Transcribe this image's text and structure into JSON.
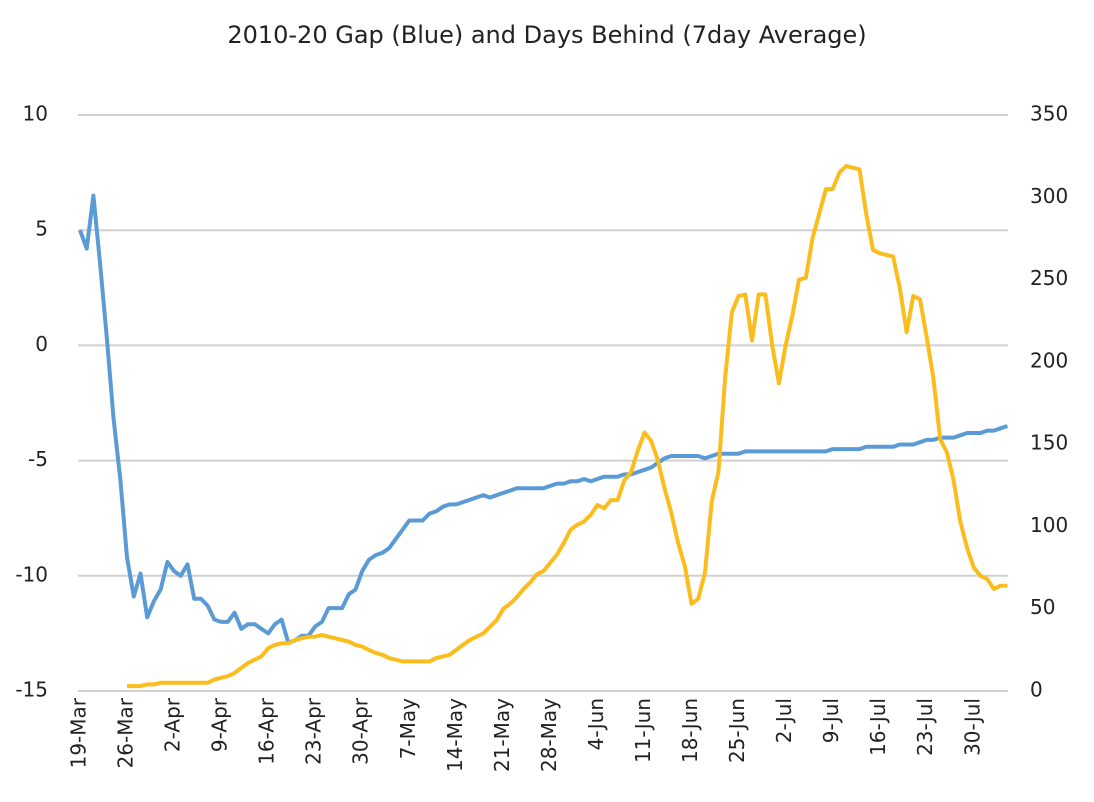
{
  "chart_data": {
    "type": "line",
    "title": "2010-20 Gap (Blue) and Days Behind (7day Average)",
    "categories": [
      "19-Mar",
      null,
      null,
      null,
      null,
      null,
      null,
      "26-Mar",
      null,
      null,
      null,
      null,
      null,
      null,
      "2-Apr",
      null,
      null,
      null,
      null,
      null,
      null,
      "9-Apr",
      null,
      null,
      null,
      null,
      null,
      null,
      "16-Apr",
      null,
      null,
      null,
      null,
      null,
      null,
      "23-Apr",
      null,
      null,
      null,
      null,
      null,
      null,
      "30-Apr",
      null,
      null,
      null,
      null,
      null,
      null,
      "7-May",
      null,
      null,
      null,
      null,
      null,
      null,
      "14-May",
      null,
      null,
      null,
      null,
      null,
      null,
      "21-May",
      null,
      null,
      null,
      null,
      null,
      null,
      "28-May",
      null,
      null,
      null,
      null,
      null,
      null,
      "4-Jun",
      null,
      null,
      null,
      null,
      null,
      null,
      "11-Jun",
      null,
      null,
      null,
      null,
      null,
      null,
      "18-Jun",
      null,
      null,
      null,
      null,
      null,
      null,
      "25-Jun",
      null,
      null,
      null,
      null,
      null,
      null,
      "2-Jul",
      null,
      null,
      null,
      null,
      null,
      null,
      "9-Jul",
      null,
      null,
      null,
      null,
      null,
      null,
      "16-Jul",
      null,
      null,
      null,
      null,
      null,
      null,
      "23-Jul",
      null,
      null,
      null,
      null,
      null,
      null,
      "30-Jul",
      null,
      null,
      null,
      null,
      null
    ],
    "series": [
      {
        "color": "#5b9bd5",
        "values": [
          5.0,
          4.2,
          6.5,
          3.5,
          0.3,
          -3.2,
          -5.8,
          -9.2,
          -10.9,
          -9.9,
          -11.8,
          -11.1,
          -10.6,
          -9.4,
          -9.8,
          -10.0,
          -9.5,
          -11.0,
          -11.0,
          -11.3,
          -11.9,
          -12.0,
          -12.0,
          -11.6,
          -12.3,
          -12.1,
          -12.1,
          -12.3,
          -12.5,
          -12.1,
          -11.9,
          -12.9,
          -12.8,
          -12.6,
          -12.6,
          -12.2,
          -12.0,
          -11.4,
          -11.4,
          -11.4,
          -10.8,
          -10.6,
          -9.8,
          -9.3,
          -9.1,
          -9.0,
          -8.8,
          -8.4,
          -8.0,
          -7.6,
          -7.6,
          -7.6,
          -7.3,
          -7.2,
          -7.0,
          -6.9,
          -6.9,
          -6.8,
          -6.7,
          -6.6,
          -6.5,
          -6.6,
          -6.5,
          -6.4,
          -6.3,
          -6.2,
          -6.2,
          -6.2,
          -6.2,
          -6.2,
          -6.1,
          -6.0,
          -6.0,
          -5.9,
          -5.9,
          -5.8,
          -5.9,
          -5.8,
          -5.7,
          -5.7,
          -5.7,
          -5.6,
          -5.6,
          -5.5,
          -5.4,
          -5.3,
          -5.1,
          -4.9,
          -4.8,
          -4.8,
          -4.8,
          -4.8,
          -4.8,
          -4.9,
          -4.8,
          -4.7,
          -4.7,
          -4.7,
          -4.7,
          -4.6,
          -4.6,
          -4.6,
          -4.6,
          -4.6,
          -4.6,
          -4.6,
          -4.6,
          -4.6,
          -4.6,
          -4.6,
          -4.6,
          -4.6,
          -4.5,
          -4.5,
          -4.5,
          -4.5,
          -4.5,
          -4.4,
          -4.4,
          -4.4,
          -4.4,
          -4.4,
          -4.3,
          -4.3,
          -4.3,
          -4.2,
          -4.1,
          -4.1,
          -4.0,
          -4.0,
          -4.0,
          -3.9,
          -3.8,
          -3.8,
          -3.8,
          -3.7,
          -3.7,
          -3.6,
          -3.5
        ]
      },
      {
        "color": "#fbbd1d",
        "axis": "y2",
        "values": [
          null,
          null,
          null,
          null,
          null,
          null,
          null,
          3,
          3,
          3,
          4,
          4,
          5,
          5,
          5,
          5,
          5,
          5,
          5,
          5,
          7,
          8,
          9,
          11,
          14,
          17,
          19,
          21,
          26,
          28,
          29,
          29,
          31,
          32,
          33,
          33,
          34,
          33,
          32,
          31,
          30,
          28,
          27,
          25,
          23,
          22,
          20,
          19,
          18,
          18,
          18,
          18,
          18,
          20,
          21,
          22,
          25,
          28,
          31,
          33,
          35,
          39,
          43,
          50,
          53,
          57,
          62,
          66,
          71,
          73,
          78,
          83,
          90,
          98,
          101,
          103,
          107,
          113,
          111,
          116,
          116,
          128,
          133,
          146,
          157,
          152,
          140,
          123,
          108,
          90,
          76,
          53,
          56,
          72,
          115,
          133,
          190,
          230,
          240,
          241,
          213,
          241,
          241,
          210,
          187,
          210,
          228,
          250,
          251,
          275,
          290,
          305,
          305,
          315,
          319,
          318,
          317,
          290,
          268,
          266,
          265,
          264,
          245,
          218,
          240,
          238,
          215,
          190,
          153,
          145,
          128,
          103,
          87,
          75,
          70,
          68,
          62,
          64,
          64
        ]
      }
    ],
    "ylim": [
      -15,
      10
    ],
    "yticks": [
      10,
      5,
      0,
      -5,
      -10,
      -15
    ],
    "y2lim": [
      0,
      350
    ],
    "y2ticks": [
      0,
      50,
      100,
      150,
      200,
      250,
      300,
      350
    ],
    "grid": true
  }
}
